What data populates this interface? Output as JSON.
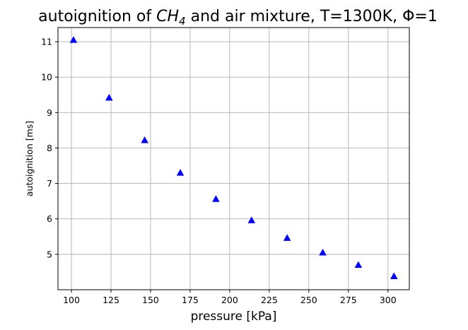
{
  "chart_data": {
    "type": "scatter",
    "title_pre": "autoignition of ",
    "title_species": "CH",
    "title_sub": "4",
    "title_post": " and air mixture, T=1300K, Φ=1",
    "xlabel": "pressure [kPa]",
    "ylabel": "autoignition [ms]",
    "xlim": [
      91.5,
      313.5
    ],
    "ylim": [
      4.0,
      11.4
    ],
    "xticks": [
      100,
      125,
      150,
      175,
      200,
      225,
      250,
      275,
      300
    ],
    "yticks": [
      5,
      6,
      7,
      8,
      9,
      10,
      11
    ],
    "grid": true,
    "marker": "triangle-up",
    "color": "#0000ff",
    "x": [
      101.3,
      123.8,
      146.3,
      168.8,
      191.3,
      213.8,
      236.3,
      258.8,
      281.3,
      303.8
    ],
    "y": [
      11.05,
      9.42,
      8.22,
      7.3,
      6.56,
      5.96,
      5.46,
      5.05,
      4.7,
      4.38
    ]
  }
}
